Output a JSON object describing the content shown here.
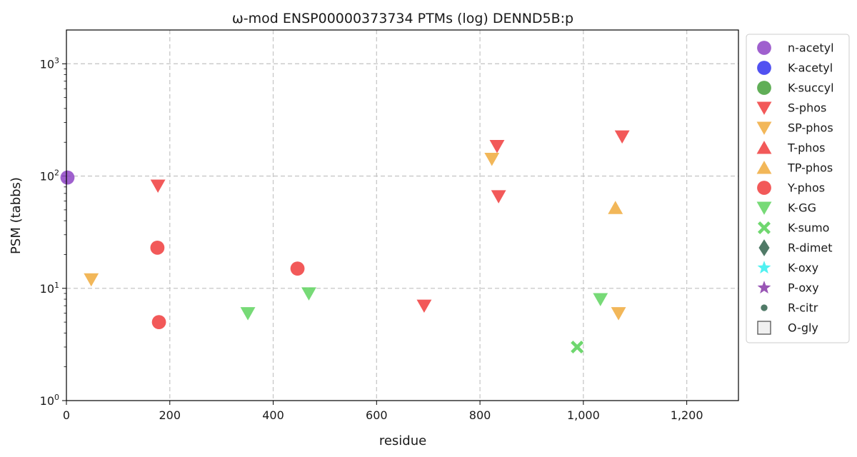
{
  "chart_data": {
    "type": "scatter",
    "title": "ω-mod ENSP00000373734 PTMs (log) DENND5B:p",
    "xlabel": "residue",
    "ylabel": "PSM (tabbs)",
    "xlim": [
      0,
      1300
    ],
    "ylim": [
      1,
      2000
    ],
    "yscale": "log",
    "grid": true,
    "legend_position": "outside-right",
    "x_ticks": [
      {
        "value": 0,
        "label": "0"
      },
      {
        "value": 200,
        "label": "200"
      },
      {
        "value": 400,
        "label": "400"
      },
      {
        "value": 600,
        "label": "600"
      },
      {
        "value": 800,
        "label": "800"
      },
      {
        "value": 1000,
        "label": "1,000"
      },
      {
        "value": 1200,
        "label": "1,200"
      }
    ],
    "y_ticks": [
      {
        "value": 1,
        "base": "10",
        "exp": "0"
      },
      {
        "value": 10,
        "base": "10",
        "exp": "1"
      },
      {
        "value": 100,
        "base": "10",
        "exp": "2"
      },
      {
        "value": 1000,
        "base": "10",
        "exp": "3"
      }
    ],
    "series": [
      {
        "name": "n-acetyl",
        "marker": "circle",
        "color": "#8e44c6",
        "points": [
          [
            2,
            97
          ]
        ]
      },
      {
        "name": "K-acetyl",
        "marker": "circle",
        "color": "#3333ee",
        "points": []
      },
      {
        "name": "K-succyl",
        "marker": "circle",
        "color": "#44a03a",
        "points": []
      },
      {
        "name": "S-phos",
        "marker": "triangle-down",
        "color": "#f03c3c",
        "points": [
          [
            177,
            82
          ],
          [
            692,
            7
          ],
          [
            833,
            185
          ],
          [
            836,
            66
          ],
          [
            1075,
            225
          ]
        ]
      },
      {
        "name": "SP-phos",
        "marker": "triangle-down",
        "color": "#f0aa3c",
        "points": [
          [
            48,
            12
          ],
          [
            823,
            142
          ],
          [
            1068,
            6
          ]
        ]
      },
      {
        "name": "T-phos",
        "marker": "triangle-up",
        "color": "#f03c3c",
        "points": []
      },
      {
        "name": "TP-phos",
        "marker": "triangle-up",
        "color": "#f0aa3c",
        "points": [
          [
            1062,
            52
          ]
        ]
      },
      {
        "name": "Y-phos",
        "marker": "circle",
        "color": "#f03c3c",
        "points": [
          [
            176,
            23
          ],
          [
            179,
            5
          ],
          [
            447,
            15
          ]
        ]
      },
      {
        "name": "K-GG",
        "marker": "triangle-down",
        "color": "#5fd35f",
        "points": [
          [
            351,
            6
          ],
          [
            469,
            9
          ],
          [
            1033,
            8
          ]
        ]
      },
      {
        "name": "K-sumo",
        "marker": "x",
        "color": "#5fd35f",
        "points": [
          [
            988,
            3
          ]
        ]
      },
      {
        "name": "R-dimet",
        "marker": "diamond",
        "color": "#3d6b56",
        "points": []
      },
      {
        "name": "K-oxy",
        "marker": "star",
        "color": "#3ef0f0",
        "points": []
      },
      {
        "name": "P-oxy",
        "marker": "star",
        "color": "#8e44ad",
        "points": []
      },
      {
        "name": "R-citr",
        "marker": "small-circle",
        "color": "#3d6b56",
        "points": []
      },
      {
        "name": "O-gly",
        "marker": "square",
        "color": "#f0f0f0",
        "points": []
      }
    ]
  }
}
